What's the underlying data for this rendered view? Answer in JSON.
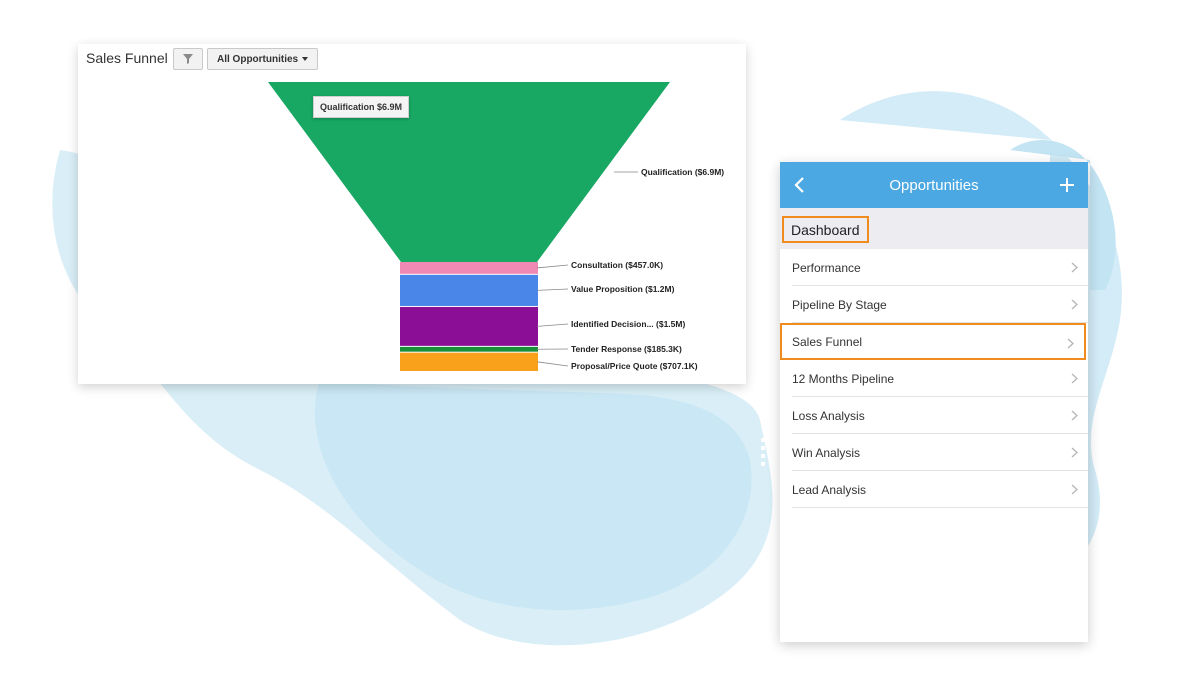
{
  "dashboard_panel": {
    "title": "Sales Funnel",
    "filter_icon": "filter-icon",
    "dropdown_label": "All Opportunities",
    "tooltip": "Qualification $6.9M"
  },
  "chart_data": {
    "type": "funnel",
    "title": "Sales Funnel",
    "stages": [
      {
        "name": "Qualification",
        "value": 6900000,
        "label": "Qualification ($6.9M)",
        "color": "#18a863"
      },
      {
        "name": "Consultation",
        "value": 457000,
        "label": "Consultation ($457.0K)",
        "color": "#f08ab4"
      },
      {
        "name": "Value Proposition",
        "value": 1200000,
        "label": "Value Proposition ($1.2M)",
        "color": "#4a86e8"
      },
      {
        "name": "Identified Decision...",
        "value": 1500000,
        "label": "Identified Decision... ($1.5M)",
        "color": "#8b0e96"
      },
      {
        "name": "Tender Response",
        "value": 185300,
        "label": "Tender Response ($185.3K)",
        "color": "#1a8f3a"
      },
      {
        "name": "Proposal/Price Quote",
        "value": 707100,
        "label": "Proposal/Price Quote ($707.1K)",
        "color": "#f9a11b"
      }
    ]
  },
  "mobile": {
    "header_title": "Opportunities",
    "back_icon": "chevron-left-icon",
    "add_icon": "plus-icon",
    "section": "Dashboard",
    "items": [
      {
        "label": "Performance",
        "highlighted": false
      },
      {
        "label": "Pipeline By Stage",
        "highlighted": false
      },
      {
        "label": "Sales Funnel",
        "highlighted": true
      },
      {
        "label": "12 Months Pipeline",
        "highlighted": false
      },
      {
        "label": "Loss Analysis",
        "highlighted": false
      },
      {
        "label": "Win Analysis",
        "highlighted": false
      },
      {
        "label": "Lead Analysis",
        "highlighted": false
      }
    ],
    "highlight_color": "#f08c1e",
    "header_color": "#4ba8e2"
  }
}
